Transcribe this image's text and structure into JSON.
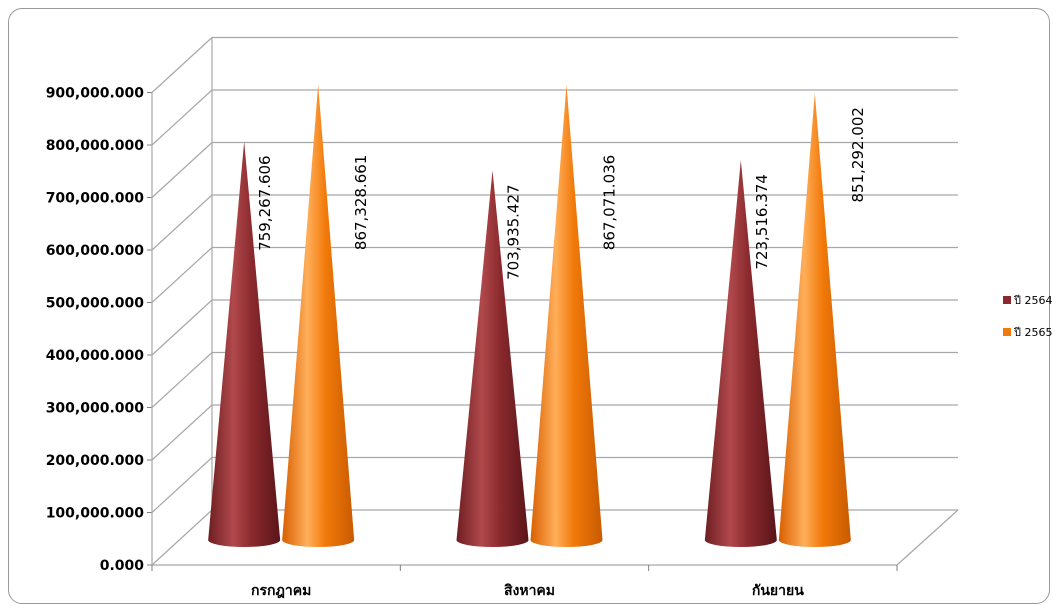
{
  "chart_data": {
    "type": "bar",
    "subtype": "3d-cone",
    "categories": [
      "กรกฎาคม",
      "สิงหาคม",
      "กันยายน"
    ],
    "series": [
      {
        "name": "ปี 2564",
        "values": [
          759267.606,
          703935.427,
          723516.374
        ],
        "labels": [
          "759,267.606",
          "703,935.427",
          "723,516.374"
        ],
        "color": "#8B2A2E"
      },
      {
        "name": "ปี 2565",
        "values": [
          867328.661,
          867071.036,
          851292.002
        ],
        "labels": [
          "867,328.661",
          "867,071.036",
          "851,292.002"
        ],
        "color": "#F27A0A"
      }
    ],
    "yticks": [
      "0.000",
      "100,000.000",
      "200,000.000",
      "300,000.000",
      "400,000.000",
      "500,000.000",
      "600,000.000",
      "700,000.000",
      "800,000.000",
      "900,000.000"
    ],
    "ylim": [
      0,
      900000
    ],
    "grid": true,
    "legend": "right"
  }
}
